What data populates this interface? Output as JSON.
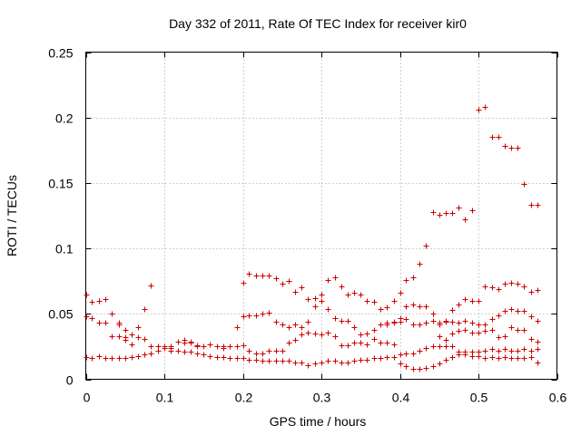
{
  "chart_data": {
    "type": "scatter",
    "title": "Day 332 of 2011, Rate Of TEC Index for receiver kir0",
    "xlabel": "GPS time / hours",
    "ylabel": "ROTI / TECUs",
    "xlim": [
      0,
      0.6
    ],
    "ylim": [
      0,
      0.25
    ],
    "x_ticks": [
      "0",
      "0.1",
      "0.2",
      "0.3",
      "0.4",
      "0.5",
      "0.6"
    ],
    "y_ticks": [
      "0",
      "0.05",
      "0.1",
      "0.15",
      "0.2",
      "0.25"
    ],
    "grid": true,
    "marker": "+",
    "color": "#cc0000",
    "series": [
      {
        "x": [
          0.0,
          0.008,
          0.017,
          0.025,
          0.033,
          0.042,
          0.05,
          0.058,
          0.067,
          0.075,
          0.083,
          0.092,
          0.1,
          0.108,
          0.117,
          0.125,
          0.133,
          0.142,
          0.15,
          0.158,
          0.167,
          0.175,
          0.183,
          0.192,
          0.2,
          0.208,
          0.217,
          0.225,
          0.233,
          0.242,
          0.25,
          0.258,
          0.267,
          0.275,
          0.283,
          0.292,
          0.3,
          0.308,
          0.317,
          0.325,
          0.333,
          0.342,
          0.35,
          0.358,
          0.367,
          0.375,
          0.383,
          0.392,
          0.4,
          0.408,
          0.417,
          0.425,
          0.433,
          0.442,
          0.45,
          0.458,
          0.467,
          0.475,
          0.483,
          0.492,
          0.5,
          0.508,
          0.517,
          0.525,
          0.533,
          0.542,
          0.55,
          0.558,
          0.567,
          0.575
        ],
        "y": [
          0.017,
          0.016,
          0.018,
          0.016,
          0.016,
          0.016,
          0.016,
          0.017,
          0.018,
          0.019,
          0.02,
          0.022,
          0.024,
          0.022,
          0.022,
          0.021,
          0.021,
          0.02,
          0.019,
          0.018,
          0.017,
          0.017,
          0.016,
          0.016,
          0.016,
          0.015,
          0.015,
          0.014,
          0.014,
          0.014,
          0.014,
          0.014,
          0.013,
          0.013,
          0.011,
          0.012,
          0.013,
          0.014,
          0.014,
          0.013,
          0.013,
          0.014,
          0.015,
          0.015,
          0.016,
          0.016,
          0.017,
          0.017,
          0.012,
          0.01,
          0.008,
          0.008,
          0.009,
          0.01,
          0.012,
          0.015,
          0.017,
          0.019,
          0.019,
          0.018,
          0.018,
          0.016,
          0.017,
          0.016,
          0.017,
          0.016,
          0.016,
          0.016,
          0.017,
          0.013
        ]
      },
      {
        "x": [
          0.0,
          0.008,
          0.017,
          0.025,
          0.033,
          0.042,
          0.05,
          0.058,
          0.067,
          0.075,
          0.083,
          0.092,
          0.1,
          0.108,
          0.117,
          0.125,
          0.133,
          0.142,
          0.15,
          0.158,
          0.167,
          0.175,
          0.183,
          0.192,
          0.2,
          0.208,
          0.217,
          0.225,
          0.233,
          0.242,
          0.25,
          0.258,
          0.267,
          0.275,
          0.283,
          0.292,
          0.3,
          0.308,
          0.317,
          0.325,
          0.333,
          0.342,
          0.35,
          0.358,
          0.367,
          0.375,
          0.383,
          0.392,
          0.4,
          0.408,
          0.417,
          0.425,
          0.433,
          0.442,
          0.45,
          0.458,
          0.467,
          0.475,
          0.483,
          0.492,
          0.5,
          0.508,
          0.517,
          0.525,
          0.533,
          0.542,
          0.55,
          0.558,
          0.567,
          0.575
        ],
        "y": [
          0.048,
          0.047,
          0.043,
          0.043,
          0.033,
          0.033,
          0.03,
          0.027,
          0.032,
          0.031,
          0.025,
          0.025,
          0.025,
          0.025,
          0.029,
          0.028,
          0.029,
          0.025,
          0.025,
          0.027,
          0.025,
          0.025,
          0.025,
          0.025,
          0.026,
          0.022,
          0.02,
          0.02,
          0.022,
          0.022,
          0.022,
          0.028,
          0.03,
          0.034,
          0.036,
          0.035,
          0.034,
          0.036,
          0.033,
          0.026,
          0.026,
          0.028,
          0.028,
          0.027,
          0.031,
          0.028,
          0.028,
          0.027,
          0.019,
          0.02,
          0.02,
          0.022,
          0.024,
          0.025,
          0.025,
          0.025,
          0.025,
          0.021,
          0.021,
          0.021,
          0.021,
          0.022,
          0.023,
          0.022,
          0.023,
          0.022,
          0.022,
          0.023,
          0.022,
          0.023
        ]
      },
      {
        "x": [
          0.0,
          0.008,
          0.017,
          0.025,
          0.033,
          0.042,
          0.05,
          0.058,
          0.067,
          0.075,
          0.083,
          0.092,
          0.1,
          0.108,
          0.117,
          0.125,
          0.133,
          0.142,
          0.15,
          0.158,
          0.167,
          0.175,
          0.183,
          0.192,
          0.2,
          0.208,
          0.217,
          0.225,
          0.233,
          0.242,
          0.25,
          0.258,
          0.267,
          0.275,
          0.283,
          0.292,
          0.3,
          0.308,
          0.317,
          0.325,
          0.333,
          0.342,
          0.35,
          0.358,
          0.367,
          0.375,
          0.383,
          0.392,
          0.4,
          0.408,
          0.417,
          0.425,
          0.433,
          0.442,
          0.45,
          0.458,
          0.467,
          0.475,
          0.483,
          0.492,
          0.5,
          0.508,
          0.517,
          0.525,
          0.533,
          0.542,
          0.55,
          0.558,
          0.567,
          0.575
        ],
        "y": [
          0.065,
          0.059,
          0.06,
          0.061,
          0.05,
          0.042,
          0.038,
          0.034,
          0.04,
          0.054,
          0.072,
          0.025,
          0.025,
          0.024,
          0.029,
          0.03,
          0.028,
          0.026,
          0.025,
          0.027,
          0.025,
          0.024,
          0.025,
          0.04,
          0.048,
          0.049,
          0.049,
          0.05,
          0.051,
          0.044,
          0.042,
          0.04,
          0.042,
          0.04,
          0.044,
          0.056,
          0.06,
          0.054,
          0.047,
          0.045,
          0.045,
          0.04,
          0.034,
          0.035,
          0.038,
          0.042,
          0.042,
          0.043,
          0.044,
          0.046,
          0.042,
          0.042,
          0.043,
          0.045,
          0.042,
          0.044,
          0.044,
          0.043,
          0.045,
          0.043,
          0.042,
          0.042,
          0.046,
          0.049,
          0.052,
          0.054,
          0.052,
          0.052,
          0.048,
          0.045
        ]
      },
      {
        "x": [
          0.042,
          0.05,
          0.2,
          0.208,
          0.217,
          0.225,
          0.233,
          0.242,
          0.25,
          0.258,
          0.267,
          0.275,
          0.283,
          0.292,
          0.3,
          0.308,
          0.317,
          0.325,
          0.333,
          0.342,
          0.35,
          0.358,
          0.367,
          0.375,
          0.383,
          0.392,
          0.4,
          0.408,
          0.417,
          0.425,
          0.433,
          0.442,
          0.45,
          0.458,
          0.467,
          0.475,
          0.483,
          0.492,
          0.5,
          0.508,
          0.517,
          0.525,
          0.533,
          0.542,
          0.55,
          0.558,
          0.567,
          0.575
        ],
        "y": [
          0.043,
          0.032,
          0.074,
          0.081,
          0.079,
          0.079,
          0.079,
          0.077,
          0.073,
          0.075,
          0.067,
          0.07,
          0.061,
          0.062,
          0.065,
          0.076,
          0.078,
          0.071,
          0.065,
          0.066,
          0.065,
          0.06,
          0.059,
          0.054,
          0.055,
          0.06,
          0.066,
          0.076,
          0.078,
          0.088,
          0.102,
          0.128,
          0.126,
          0.127,
          0.127,
          0.131,
          0.122,
          0.129,
          0.206,
          0.208,
          0.185,
          0.185,
          0.178,
          0.177,
          0.177,
          0.149,
          0.133,
          0.133
        ]
      },
      {
        "x": [
          0.45,
          0.458,
          0.467,
          0.475,
          0.483,
          0.492,
          0.5,
          0.508,
          0.517,
          0.525,
          0.533,
          0.542,
          0.55,
          0.558,
          0.567,
          0.575
        ],
        "y": [
          0.043,
          0.045,
          0.053,
          0.057,
          0.061,
          0.06,
          0.06,
          0.071,
          0.07,
          0.069,
          0.073,
          0.074,
          0.073,
          0.071,
          0.067,
          0.068
        ]
      },
      {
        "x": [
          0.383,
          0.392,
          0.4,
          0.408,
          0.417,
          0.425,
          0.433,
          0.442,
          0.45,
          0.458,
          0.467,
          0.475,
          0.483,
          0.492,
          0.5,
          0.508,
          0.517,
          0.525,
          0.533,
          0.542,
          0.55,
          0.558,
          0.567,
          0.575
        ],
        "y": [
          0.043,
          0.044,
          0.047,
          0.056,
          0.057,
          0.056,
          0.056,
          0.05,
          0.033,
          0.03,
          0.035,
          0.037,
          0.038,
          0.036,
          0.036,
          0.037,
          0.038,
          0.032,
          0.033,
          0.04,
          0.038,
          0.038,
          0.031,
          0.029
        ]
      }
    ]
  }
}
